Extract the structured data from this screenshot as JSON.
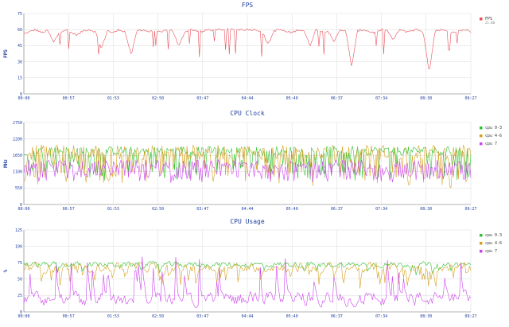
{
  "chart_data": [
    {
      "type": "line",
      "title": "FPS",
      "ylabel": "FPS",
      "ylim": [
        0,
        75
      ],
      "yticks": [
        0,
        15,
        30,
        45,
        60,
        75
      ],
      "x_tick_labels": [
        "00:00",
        "00:57",
        "01:53",
        "02:50",
        "03:47",
        "04:44",
        "05:40",
        "06:37",
        "07:34",
        "08:30",
        "09:27"
      ],
      "grid": true,
      "legend_position": "top-right",
      "legend_sub": "21.80",
      "series": [
        {
          "name": "FPS",
          "color": "#e8505a",
          "baseline": 58,
          "noise": 2,
          "dips": 0.1,
          "dip_depth": [
            8,
            35
          ],
          "values": [
            56,
            58,
            60,
            57,
            59,
            48,
            58,
            60,
            57,
            55,
            59,
            60,
            58,
            42,
            59,
            57,
            60,
            58,
            36,
            59,
            60,
            58,
            59,
            57,
            60,
            59,
            44,
            58,
            60,
            59,
            58,
            60,
            59,
            60,
            60,
            60,
            60,
            60,
            60,
            60,
            58,
            46,
            59,
            60,
            58,
            57,
            60,
            59,
            45,
            60,
            58,
            59,
            48,
            60,
            59,
            25,
            59,
            60,
            58,
            57,
            60,
            59,
            50,
            60,
            58,
            59,
            60,
            58,
            20,
            59,
            60,
            58,
            57,
            59,
            60,
            58
          ]
        }
      ]
    },
    {
      "type": "line",
      "title": "CPU Clock",
      "ylabel": "MHz",
      "ylim": [
        0,
        2750
      ],
      "yticks": [
        0,
        550,
        1100,
        1650,
        2200,
        2750
      ],
      "x_tick_labels": [
        "00:00",
        "00:57",
        "01:53",
        "02:50",
        "03:47",
        "04:44",
        "05:40",
        "06:37",
        "07:34",
        "08:30",
        "09:27"
      ],
      "grid": true,
      "legend_position": "top-right",
      "series": [
        {
          "name": "cpu 0-3",
          "color": "#2ec32e",
          "baseline": 1800,
          "noise": 150,
          "dips": 0.25,
          "dip_depth": [
            400,
            900
          ]
        },
        {
          "name": "cpu 4-6",
          "color": "#d4a020",
          "baseline": 1750,
          "noise": 250,
          "dips": 0.3,
          "dip_depth": [
            500,
            1000
          ]
        },
        {
          "name": "cpu 7",
          "color": "#cc44ee",
          "baseline": 1350,
          "noise": 150,
          "dips": 0.45,
          "dip_depth": [
            300,
            500
          ]
        }
      ]
    },
    {
      "type": "line",
      "title": "CPU Usage",
      "ylabel": "%",
      "ylim": [
        0,
        125
      ],
      "yticks": [
        0,
        25,
        50,
        75,
        100,
        125
      ],
      "x_tick_labels": [
        "00:00",
        "00:57",
        "01:53",
        "02:50",
        "03:47",
        "04:44",
        "05:40",
        "06:37",
        "07:34",
        "08:30",
        "09:27"
      ],
      "grid": true,
      "legend_position": "top-right",
      "series": [
        {
          "name": "cpu 0-3",
          "color": "#2ec32e",
          "baseline": 72,
          "noise": 6,
          "dips": 0.05,
          "dip_depth": [
            10,
            25
          ]
        },
        {
          "name": "cpu 4-6",
          "color": "#d4a020",
          "baseline": 68,
          "noise": 10,
          "dips": 0.12,
          "dip_depth": [
            20,
            45
          ]
        },
        {
          "name": "cpu 7",
          "color": "#cc44ee",
          "baseline": 20,
          "noise": 15,
          "dips": 0.0,
          "dip_depth": [
            0,
            0
          ]
        }
      ]
    }
  ]
}
